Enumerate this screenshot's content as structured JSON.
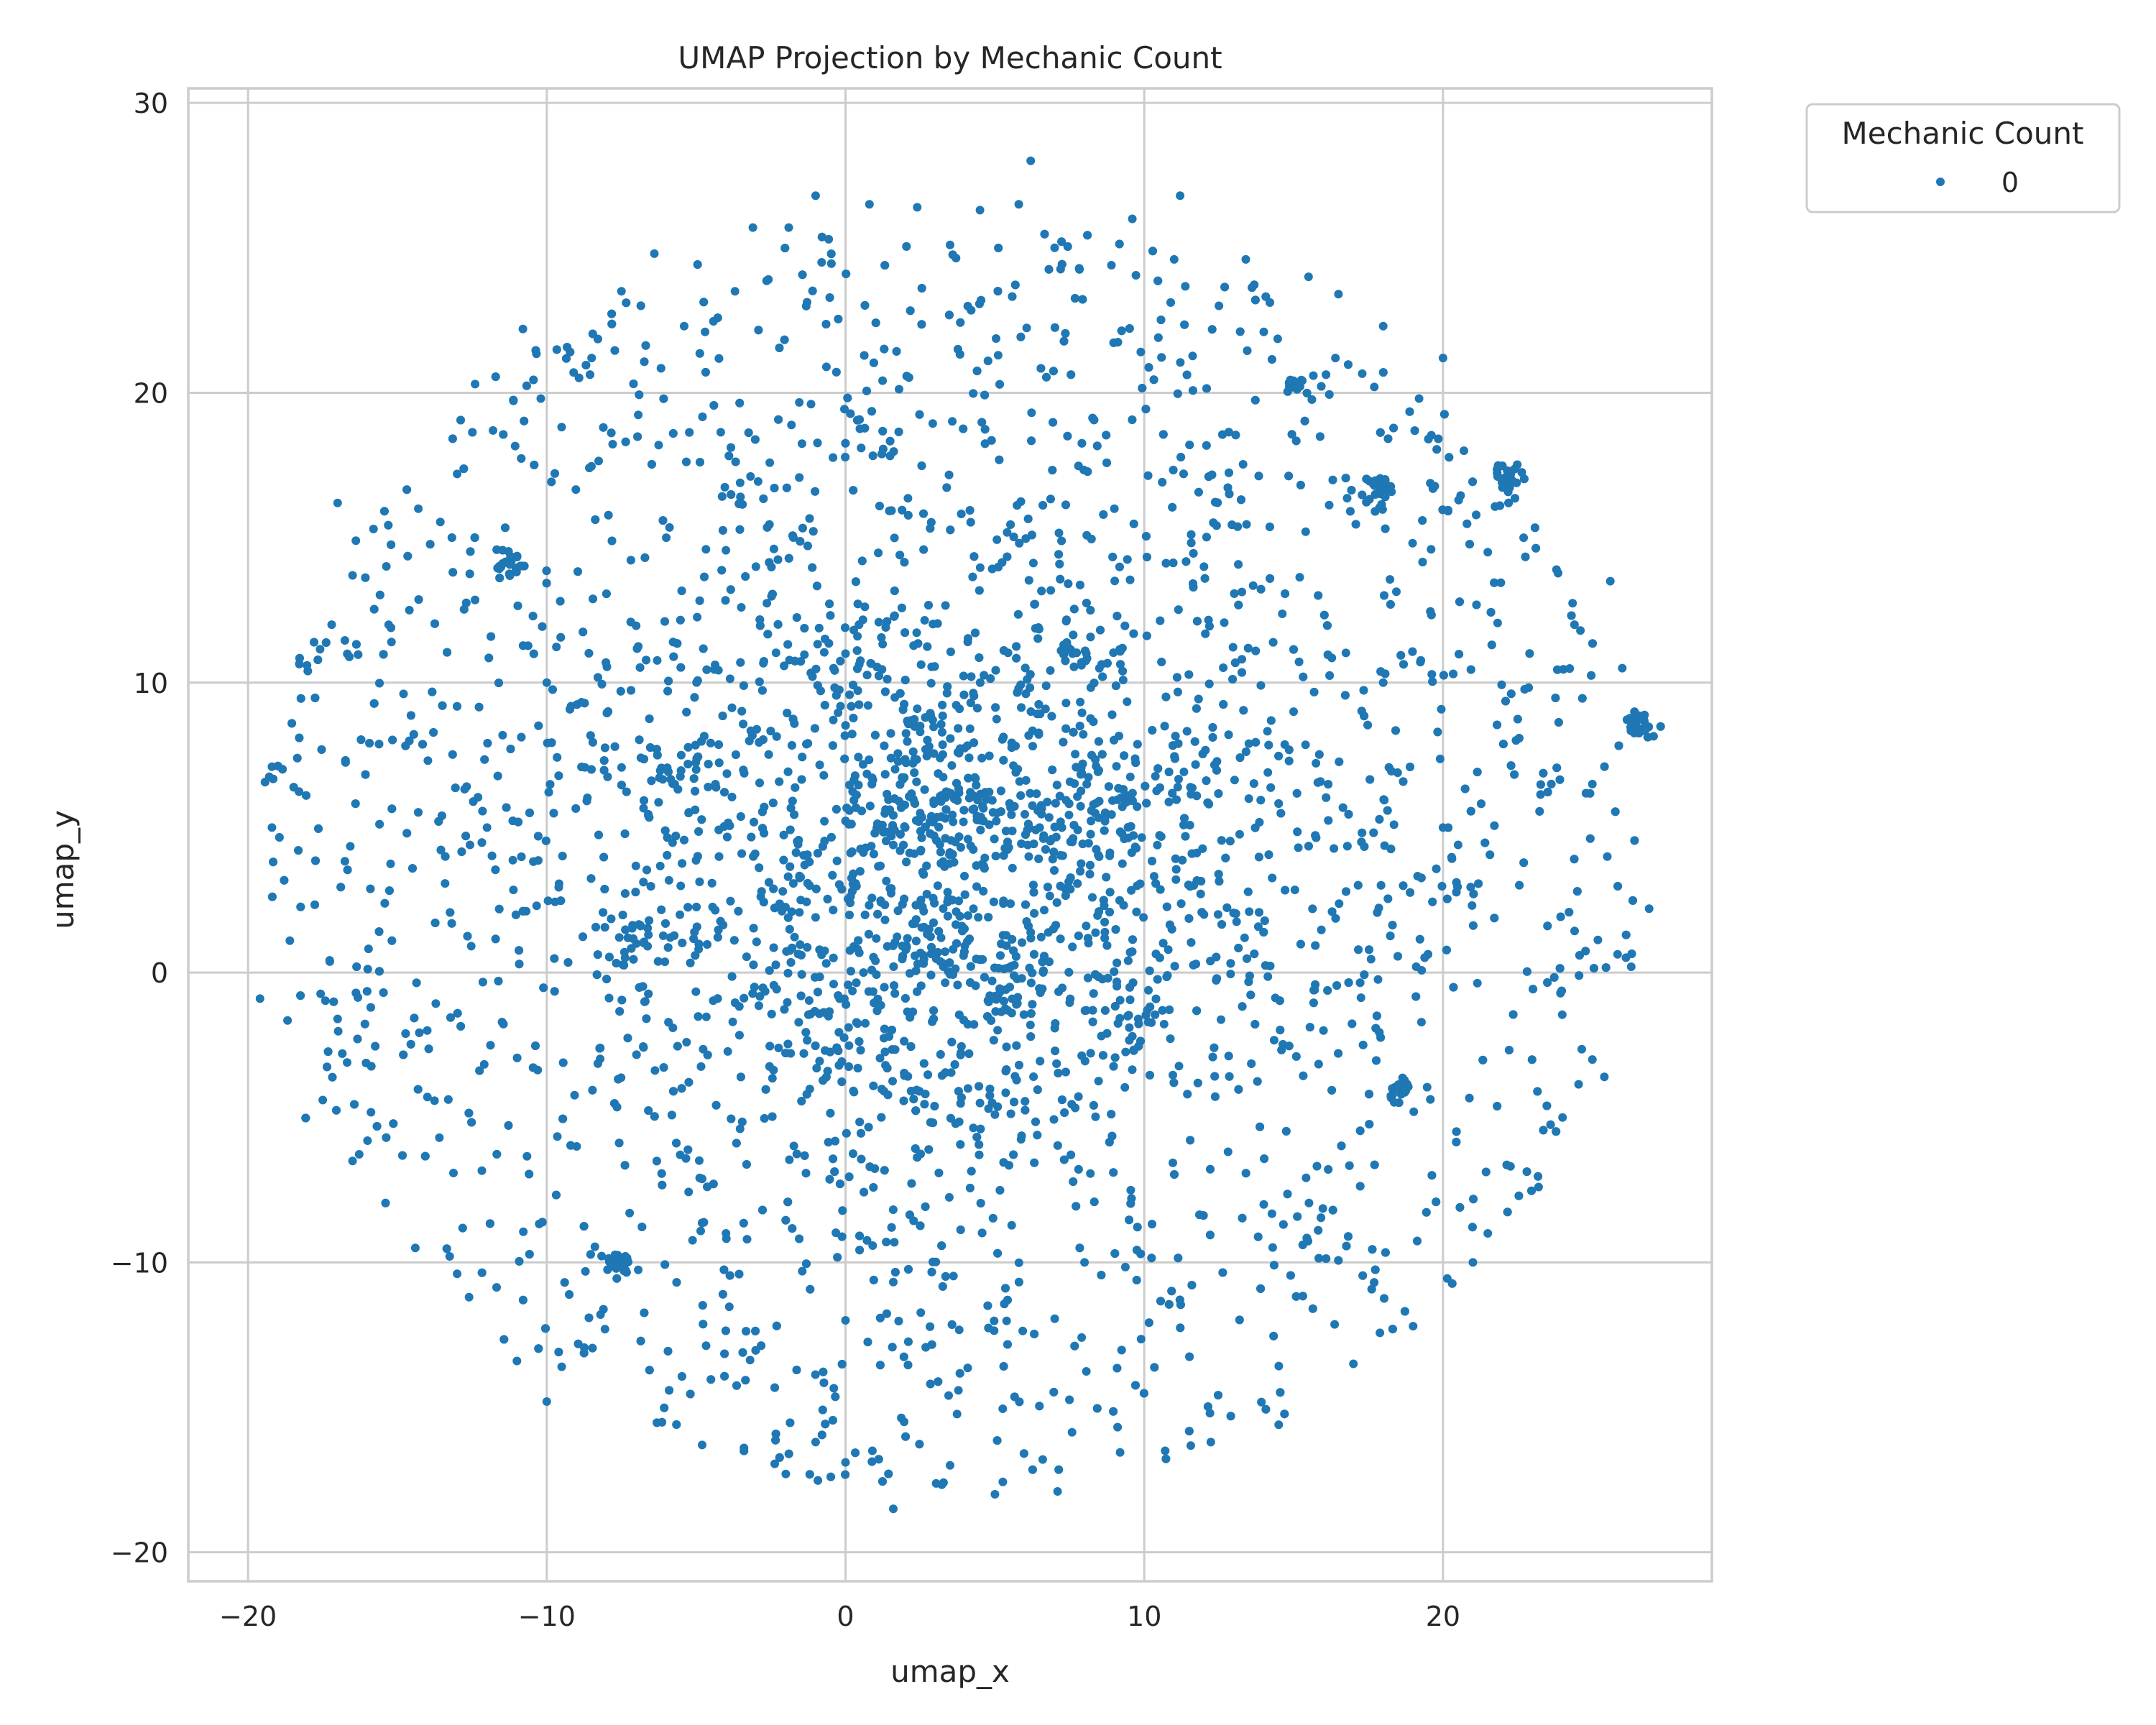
{
  "chart_data": {
    "type": "scatter",
    "title": "UMAP Projection by Mechanic Count",
    "xlabel": "umap_x",
    "ylabel": "umap_y",
    "xlim": [
      -22,
      29
    ],
    "ylim": [
      -21,
      30.5
    ],
    "x_ticks": [
      -20,
      -10,
      0,
      10,
      20
    ],
    "y_ticks": [
      -20,
      -10,
      0,
      10,
      20,
      30
    ],
    "x_tick_labels": [
      "−20",
      "−10",
      "0",
      "10",
      "20"
    ],
    "y_tick_labels": [
      "−20",
      "−10",
      "0",
      "10",
      "20",
      "30"
    ],
    "grid": true,
    "legend": {
      "title": "Mechanic Count",
      "placement": "upper-right-outside",
      "entries": [
        {
          "label": "0",
          "color": "#1f77b4"
        }
      ]
    },
    "colors": {
      "point": "#1f77b4",
      "grid": "#cccccc",
      "frame": "#cccccc",
      "text": "#262626"
    },
    "series": [
      {
        "name": "0",
        "color": "#1f77b4",
        "approx_point_count": 6000,
        "cluster_centers": [
          [
            2.0,
            5.0
          ],
          [
            3.6,
            5.2
          ],
          [
            -1.5,
            2.5
          ],
          [
            3.2,
            1.2
          ],
          [
            2.5,
            8.3
          ],
          [
            6.5,
            5.0
          ],
          [
            8.3,
            5.8
          ],
          [
            9.8,
            -1.6
          ],
          [
            7.6,
            11.0
          ],
          [
            1.0,
            0.4
          ],
          [
            -5.0,
            7.0
          ],
          [
            4.5,
            -4.5
          ],
          [
            -7.0,
            1.0
          ],
          [
            0.0,
            11.0
          ],
          [
            5.5,
            -0.5
          ],
          [
            -11.2,
            14.1
          ],
          [
            15.2,
            20.3
          ],
          [
            22.2,
            17.1
          ],
          [
            17.9,
            16.7
          ],
          [
            26.6,
            8.4
          ],
          [
            -7.6,
            -10.1
          ],
          [
            18.6,
            -4.2
          ]
        ],
        "points": [
          [
            6.2,
            28.0
          ],
          [
            1.6,
            -18.5
          ],
          [
            -19.6,
            -0.9
          ],
          [
            26.6,
            8.4
          ],
          [
            15.2,
            20.3
          ],
          [
            22.2,
            17.1
          ],
          [
            17.9,
            16.7
          ],
          [
            -11.2,
            14.2
          ],
          [
            -7.6,
            -10.1
          ],
          [
            20.0,
            21.2
          ],
          [
            -17.0,
            16.2
          ],
          [
            -19.2,
            7.1
          ],
          [
            -17.5,
            -4.4
          ],
          [
            25.6,
            13.5
          ],
          [
            26.9,
            2.2
          ],
          [
            -18.0,
            10.4
          ],
          [
            -10.8,
            22.2
          ],
          [
            11.2,
            26.8
          ],
          [
            -1.0,
            26.8
          ],
          [
            21.0,
            -10.0
          ],
          [
            -10.0,
            -14.8
          ],
          [
            -2.0,
            -17.3
          ],
          [
            9.6,
            26.0
          ],
          [
            13.4,
            24.6
          ],
          [
            -16.5,
            -6.5
          ],
          [
            -12.4,
            20.3
          ],
          [
            24.4,
            12.0
          ],
          [
            25.4,
            -3.6
          ],
          [
            0.0,
            -16.9
          ],
          [
            5.0,
            -18.0
          ],
          [
            7.1,
            -17.9
          ],
          [
            -19.2,
            5.0
          ],
          [
            19.6,
            14.6
          ],
          [
            18.0,
            22.3
          ],
          [
            -8.2,
            -11.8
          ],
          [
            -14.3,
            16.0
          ],
          [
            16.5,
            23.4
          ],
          [
            15.5,
            24.0
          ],
          [
            -6.4,
            24.8
          ],
          [
            -4.7,
            22.1
          ],
          [
            -3.1,
            25.7
          ],
          [
            0.8,
            26.5
          ],
          [
            2.4,
            26.4
          ],
          [
            4.5,
            26.3
          ],
          [
            5.8,
            26.5
          ],
          [
            -1.9,
            25.7
          ],
          [
            -7.5,
            23.5
          ],
          [
            -9.1,
            20.7
          ],
          [
            -15.2,
            11.4
          ],
          [
            -14.6,
            12.5
          ],
          [
            -16.5,
            13.7
          ],
          [
            -18.6,
            1.1
          ],
          [
            -17.0,
            -1.6
          ],
          [
            -16.0,
            -5.8
          ],
          [
            -14.4,
            -9.5
          ],
          [
            -12.6,
            -11.2
          ],
          [
            -11.0,
            -13.4
          ],
          [
            -9.5,
            -13.6
          ],
          [
            -4.8,
            -16.3
          ],
          [
            -3.4,
            -16.4
          ],
          [
            -1.0,
            -16.2
          ],
          [
            0.9,
            -16.5
          ],
          [
            3.5,
            -17.0
          ],
          [
            6.6,
            -16.8
          ],
          [
            10.7,
            -16.5
          ],
          [
            12.2,
            -15.2
          ],
          [
            14.5,
            -15.6
          ],
          [
            17.0,
            -13.5
          ],
          [
            19.0,
            -12.2
          ],
          [
            21.5,
            -9.0
          ],
          [
            23.2,
            -7.4
          ],
          [
            24.0,
            -5.0
          ],
          [
            25.0,
            -3.0
          ],
          [
            26.3,
            0.2
          ],
          [
            25.5,
            4.0
          ],
          [
            25.0,
            6.5
          ],
          [
            26.0,
            10.5
          ],
          [
            24.6,
            11.8
          ],
          [
            23.8,
            13.9
          ],
          [
            22.7,
            15.0
          ],
          [
            21.5,
            14.5
          ],
          [
            20.7,
            18.0
          ],
          [
            19.2,
            19.8
          ],
          [
            17.7,
            20.2
          ],
          [
            16.4,
            21.2
          ],
          [
            14.0,
            22.1
          ],
          [
            12.5,
            23.0
          ],
          [
            11.0,
            24.6
          ],
          [
            8.9,
            24.4
          ],
          [
            7.0,
            25.0
          ],
          [
            3.5,
            25.1
          ],
          [
            -0.8,
            24.5
          ],
          [
            -3.7,
            23.5
          ],
          [
            -5.4,
            22.3
          ],
          [
            -8.5,
            21.2
          ],
          [
            -10.2,
            19.8
          ],
          [
            -11.8,
            18.7
          ],
          [
            -13.0,
            17.2
          ],
          [
            -15.8,
            15.3
          ],
          [
            -17.2,
            12.0
          ],
          [
            2.0,
            5.0
          ],
          [
            2.5,
            5.5
          ],
          [
            1.6,
            4.4
          ],
          [
            2.3,
            4.1
          ],
          [
            1.9,
            5.8
          ],
          [
            3.6,
            5.2
          ],
          [
            3.2,
            5.9
          ],
          [
            4.1,
            4.6
          ],
          [
            3.8,
            6.2
          ],
          [
            4.4,
            5.4
          ],
          [
            -1.5,
            2.5
          ],
          [
            -1.8,
            2.1
          ],
          [
            -1.2,
            3.0
          ],
          [
            -2.1,
            2.8
          ],
          [
            -1.0,
            1.9
          ],
          [
            3.2,
            1.2
          ],
          [
            3.6,
            0.8
          ],
          [
            2.8,
            1.5
          ],
          [
            3.9,
            1.6
          ],
          [
            2.6,
            0.6
          ],
          [
            2.5,
            8.3
          ],
          [
            2.2,
            8.7
          ],
          [
            2.8,
            7.8
          ],
          [
            2.4,
            9.1
          ],
          [
            6.5,
            5.0
          ],
          [
            6.9,
            4.6
          ],
          [
            7.2,
            5.2
          ],
          [
            6.1,
            4.4
          ],
          [
            8.3,
            5.8
          ],
          [
            8.7,
            5.4
          ],
          [
            9.8,
            -1.6
          ],
          [
            9.5,
            -1.9
          ],
          [
            10.1,
            -1.3
          ],
          [
            9.6,
            -2.2
          ],
          [
            7.6,
            11.0
          ],
          [
            7.9,
            10.6
          ],
          [
            7.3,
            11.3
          ],
          [
            1.0,
            0.4
          ],
          [
            0.6,
            0.0
          ],
          [
            1.4,
            0.9
          ],
          [
            -5.0,
            7.0
          ],
          [
            -4.6,
            6.4
          ],
          [
            -5.5,
            7.5
          ],
          [
            4.5,
            -4.5
          ],
          [
            4.1,
            -4.0
          ],
          [
            5.0,
            -4.9
          ],
          [
            -7.0,
            1.0
          ],
          [
            -7.4,
            0.7
          ],
          [
            -6.6,
            1.3
          ],
          [
            0.0,
            11.0
          ],
          [
            0.4,
            11.6
          ],
          [
            -0.4,
            10.5
          ],
          [
            5.5,
            -0.5
          ],
          [
            5.9,
            -0.2
          ],
          [
            5.1,
            -0.8
          ],
          [
            18.6,
            -4.2
          ],
          [
            18.3,
            -4.0
          ],
          [
            12.0,
            2.0
          ],
          [
            13.5,
            6.0
          ],
          [
            15.0,
            9.0
          ],
          [
            -3.0,
            14.0
          ],
          [
            -6.0,
            15.0
          ],
          [
            9.0,
            16.0
          ],
          [
            12.0,
            14.0
          ],
          [
            -9.0,
            -6.0
          ],
          [
            -4.0,
            -9.0
          ],
          [
            0.0,
            -12.0
          ],
          [
            8.0,
            -10.0
          ],
          [
            14.0,
            -8.0
          ],
          [
            16.0,
            -2.0
          ],
          [
            -12.0,
            5.0
          ],
          [
            -14.0,
            -2.0
          ],
          [
            -10.0,
            10.0
          ],
          [
            20.0,
            5.0
          ],
          [
            18.0,
            10.0
          ]
        ]
      }
    ]
  }
}
